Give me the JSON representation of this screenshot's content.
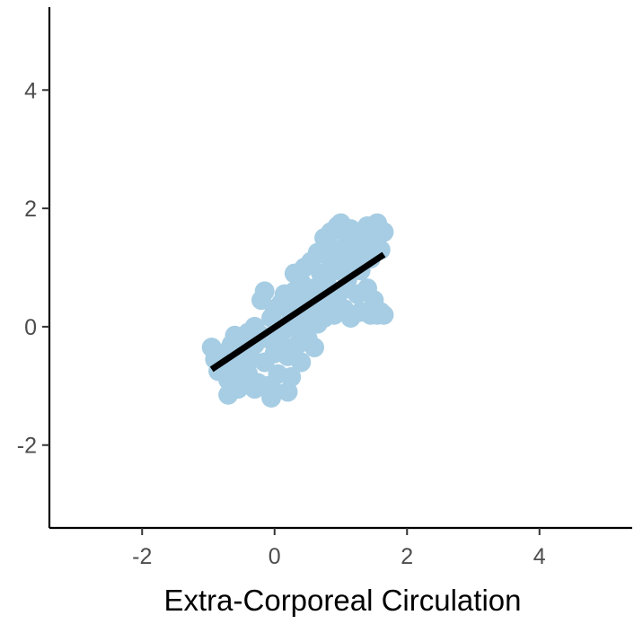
{
  "chart_data": {
    "type": "scatter",
    "title": "",
    "xlabel": "Extra-Corporeal Circulation",
    "ylabel": "",
    "xlim": [
      -3.4,
      5.4
    ],
    "ylim": [
      -3.4,
      5.4
    ],
    "x_ticks": [
      -2,
      0,
      2,
      4
    ],
    "y_ticks": [
      -2,
      0,
      2,
      4
    ],
    "x_tick_labels": [
      "-2",
      "0",
      "2",
      "4"
    ],
    "y_tick_labels": [
      "-2",
      "0",
      "2",
      "4"
    ],
    "grid": false,
    "legend": "none",
    "point_color": "#a6cde3",
    "line_color": "#000000",
    "series": [
      {
        "points": [
          [
            -0.95,
            -0.35
          ],
          [
            -0.9,
            -0.55
          ],
          [
            -0.85,
            -0.75
          ],
          [
            -0.8,
            -0.45
          ],
          [
            -0.75,
            -0.6
          ],
          [
            -0.7,
            -0.9
          ],
          [
            -0.7,
            -1.15
          ],
          [
            -0.65,
            -0.3
          ],
          [
            -0.6,
            -0.5
          ],
          [
            -0.6,
            -0.85
          ],
          [
            -0.55,
            -1.05
          ],
          [
            -0.5,
            -0.2
          ],
          [
            -0.5,
            -0.65
          ],
          [
            -0.45,
            -0.4
          ],
          [
            -0.4,
            -0.1
          ],
          [
            -0.4,
            -0.8
          ],
          [
            -0.35,
            -0.55
          ],
          [
            -0.3,
            0.0
          ],
          [
            -0.3,
            -0.3
          ],
          [
            -0.25,
            -0.95
          ],
          [
            -0.2,
            -0.15
          ],
          [
            -0.2,
            0.45
          ],
          [
            -0.15,
            -0.6
          ],
          [
            -0.15,
            0.6
          ],
          [
            -0.1,
            -1.0
          ],
          [
            -0.1,
            -0.2
          ],
          [
            -0.05,
            0.15
          ],
          [
            -0.05,
            -1.2
          ],
          [
            0.0,
            -0.45
          ],
          [
            0.0,
            0.3
          ],
          [
            0.05,
            0.0
          ],
          [
            0.05,
            -0.8
          ],
          [
            0.1,
            0.4
          ],
          [
            0.1,
            -0.3
          ],
          [
            0.15,
            0.55
          ],
          [
            0.15,
            -0.05
          ],
          [
            0.2,
            -0.5
          ],
          [
            0.2,
            -1.1
          ],
          [
            0.25,
            0.2
          ],
          [
            0.25,
            -0.85
          ],
          [
            0.3,
            0.6
          ],
          [
            0.3,
            0.0
          ],
          [
            0.35,
            -0.3
          ],
          [
            0.35,
            0.35
          ],
          [
            0.4,
            -0.6
          ],
          [
            0.4,
            0.75
          ],
          [
            0.45,
            0.1
          ],
          [
            0.45,
            1.0
          ],
          [
            0.5,
            -0.2
          ],
          [
            0.5,
            0.5
          ],
          [
            0.55,
            0.25
          ],
          [
            0.55,
            1.1
          ],
          [
            0.6,
            -0.35
          ],
          [
            0.6,
            0.65
          ],
          [
            0.65,
            0.05
          ],
          [
            0.65,
            1.25
          ],
          [
            0.7,
            0.4
          ],
          [
            0.7,
            0.9
          ],
          [
            0.75,
            1.5
          ],
          [
            0.75,
            0.15
          ],
          [
            0.8,
            0.7
          ],
          [
            0.8,
            1.2
          ],
          [
            0.85,
            0.45
          ],
          [
            0.85,
            1.6
          ],
          [
            0.9,
            0.95
          ],
          [
            0.9,
            0.2
          ],
          [
            0.95,
            1.7
          ],
          [
            0.95,
            1.3
          ],
          [
            1.0,
            0.6
          ],
          [
            1.0,
            1.75
          ],
          [
            1.05,
            1.05
          ],
          [
            1.05,
            0.3
          ],
          [
            1.1,
            1.45
          ],
          [
            1.1,
            0.8
          ],
          [
            1.15,
            1.65
          ],
          [
            1.15,
            0.15
          ],
          [
            1.2,
            1.2
          ],
          [
            1.25,
            0.55
          ],
          [
            1.25,
            1.55
          ],
          [
            1.3,
            0.95
          ],
          [
            1.3,
            0.25
          ],
          [
            1.35,
            1.4
          ],
          [
            1.4,
            1.7
          ],
          [
            1.4,
            0.65
          ],
          [
            1.45,
            1.15
          ],
          [
            1.45,
            0.2
          ],
          [
            1.5,
            1.5
          ],
          [
            1.5,
            0.45
          ],
          [
            1.55,
            1.75
          ],
          [
            1.55,
            0.2
          ],
          [
            1.6,
            1.3
          ],
          [
            1.6,
            0.25
          ],
          [
            1.65,
            1.6
          ],
          [
            1.65,
            0.2
          ],
          [
            -0.6,
            -0.15
          ],
          [
            0.0,
            -1.1
          ],
          [
            -0.3,
            -1.05
          ],
          [
            0.4,
            0.45
          ],
          [
            0.6,
            0.35
          ],
          [
            0.3,
            0.9
          ]
        ]
      }
    ],
    "trend_line": {
      "x": [
        -0.95,
        1.65
      ],
      "y": [
        -0.72,
        1.22
      ]
    }
  }
}
